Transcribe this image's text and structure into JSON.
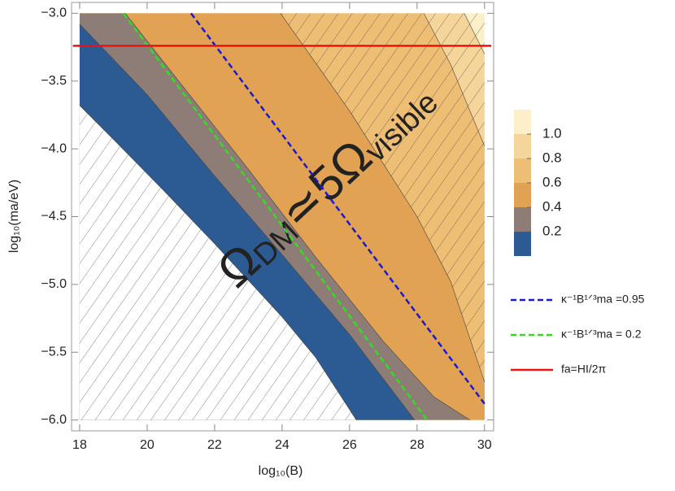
{
  "chart_data": {
    "type": "contour",
    "xlabel": "log₁₀(B)",
    "ylabel": "log₁₀(ma/eV)",
    "xlim": [
      17.76,
      30.27
    ],
    "ylim": [
      -6.08,
      -2.92
    ],
    "xticks": [
      18,
      20,
      22,
      24,
      26,
      28,
      30
    ],
    "yticks": [
      {
        "value": -3,
        "label": "−3.0"
      },
      {
        "value": -3.5,
        "label": "−3.5"
      },
      {
        "value": -4,
        "label": "−4.0"
      },
      {
        "value": -4.5,
        "label": "−4.5"
      },
      {
        "value": -5,
        "label": "−5.0"
      },
      {
        "value": -5.5,
        "label": "−5.5"
      },
      {
        "value": -6,
        "label": "−6.0"
      }
    ],
    "band_colors": [
      "#2b5b92",
      "#8e7d76",
      "#e2a253",
      "#efbe75",
      "#f6d59a",
      "#fdf0c8"
    ],
    "contours": [
      {
        "level": 0,
        "hatch": "below",
        "x": [
          18,
          19,
          20.5,
          22,
          24,
          25,
          26.2
        ],
        "y": [
          -3.68,
          -3.93,
          -4.31,
          -4.7,
          -5.24,
          -5.54,
          -6.0
        ]
      },
      {
        "level": 0.2,
        "x": [
          18,
          20,
          22,
          24,
          26,
          27.93
        ],
        "y": [
          -3.08,
          -3.6,
          -4.2,
          -4.78,
          -5.37,
          -6.0
        ]
      },
      {
        "level": 0.4,
        "x": [
          19.35,
          21,
          23,
          25,
          27,
          28.5,
          29.57
        ],
        "y": [
          -3.0,
          -3.52,
          -4.15,
          -4.8,
          -5.42,
          -5.83,
          -6.0
        ]
      },
      {
        "level": 0.6,
        "hatch": "above",
        "x": [
          23.95,
          26,
          28,
          29,
          30
        ],
        "y": [
          -3.0,
          -3.72,
          -4.5,
          -4.98,
          -5.72
        ]
      },
      {
        "level": 0.8,
        "x": [
          28.2,
          29,
          30
        ],
        "y": [
          -3.0,
          -3.38,
          -3.98
        ]
      },
      {
        "level": 1.0,
        "x": [
          29.4,
          30
        ],
        "y": [
          -3.0,
          -3.3
        ]
      }
    ],
    "colorbar": {
      "lim": [
        0,
        1.2
      ],
      "ticks": [
        0.2,
        0.4,
        0.6,
        0.8,
        {
          "value": 1,
          "label": "1.0"
        }
      ]
    },
    "series": [
      {
        "name": "κ⁻¹B¹ᐟ³ma =0.95",
        "color": "#1a1acf",
        "dash": true,
        "x": [
          21.3,
          30
        ],
        "values": [
          -3.0,
          -5.88
        ]
      },
      {
        "name": "κ⁻¹B¹ᐟ³ma = 0.2",
        "color": "#33dd22",
        "dash": true,
        "x": [
          19.3,
          28.3
        ],
        "values": [
          -3.0,
          -6.0
        ]
      },
      {
        "name": "fa=HI/2π",
        "color": "#ee1111",
        "dash": false,
        "x": [
          17.8,
          30.2
        ],
        "values": [
          -3.24,
          -3.24
        ]
      }
    ],
    "annotation": [
      "Ω",
      "DM",
      "≃5Ω",
      "visible"
    ]
  }
}
